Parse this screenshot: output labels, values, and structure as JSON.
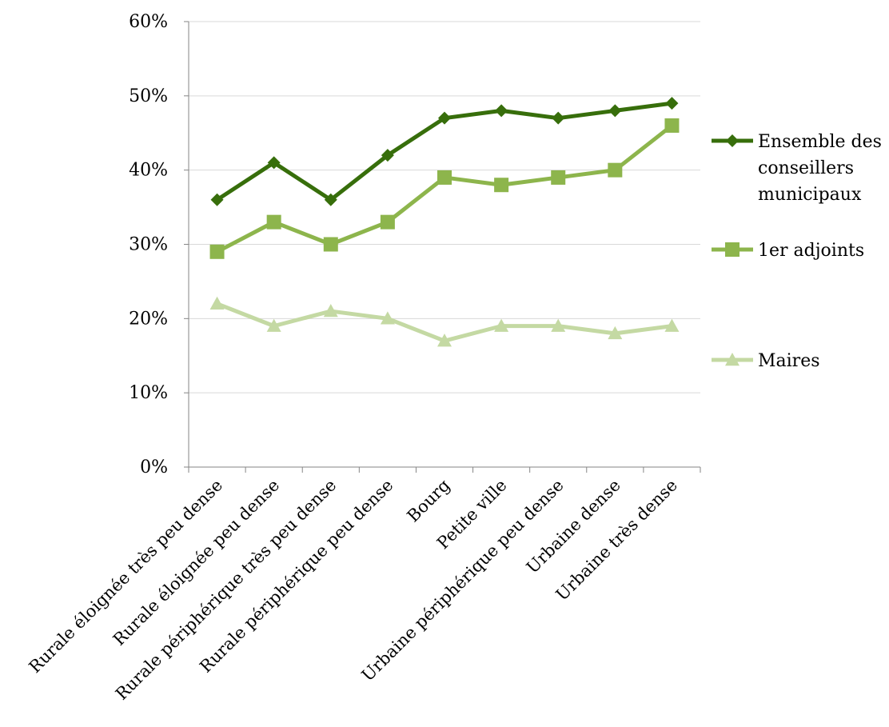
{
  "chart_data": {
    "type": "line",
    "categories": [
      "Rurale éloignée très peu dense",
      "Rurale éloignée peu dense",
      "Rurale périphérique très peu dense",
      "Rurale périphérique peu dense",
      "Bourg",
      "Petite ville",
      "Urbaine périphérique peu dense",
      "Urbaine dense",
      "Urbaine très dense"
    ],
    "y_ticks": [
      "0%",
      "10%",
      "20%",
      "30%",
      "40%",
      "50%",
      "60%"
    ],
    "ylim": [
      0,
      60
    ],
    "y_unit": "%",
    "grid": true,
    "legend_position": "right",
    "series": [
      {
        "name": "Ensemble des conseillers municipaux",
        "name_lines": [
          "Ensemble des",
          "conseillers",
          "municipaux"
        ],
        "marker": "diamond",
        "color": "#376e0b",
        "values": [
          36,
          41,
          36,
          42,
          47,
          48,
          47,
          48,
          49
        ]
      },
      {
        "name": "1er adjoints",
        "name_lines": [
          "1er adjoints"
        ],
        "marker": "square",
        "color": "#8db54c",
        "values": [
          29,
          33,
          30,
          33,
          39,
          38,
          39,
          40,
          46
        ]
      },
      {
        "name": "Maires",
        "name_lines": [
          "Maires"
        ],
        "marker": "triangle",
        "color": "#c4d9a3",
        "values": [
          22,
          19,
          21,
          20,
          17,
          19,
          19,
          18,
          19
        ]
      }
    ]
  }
}
